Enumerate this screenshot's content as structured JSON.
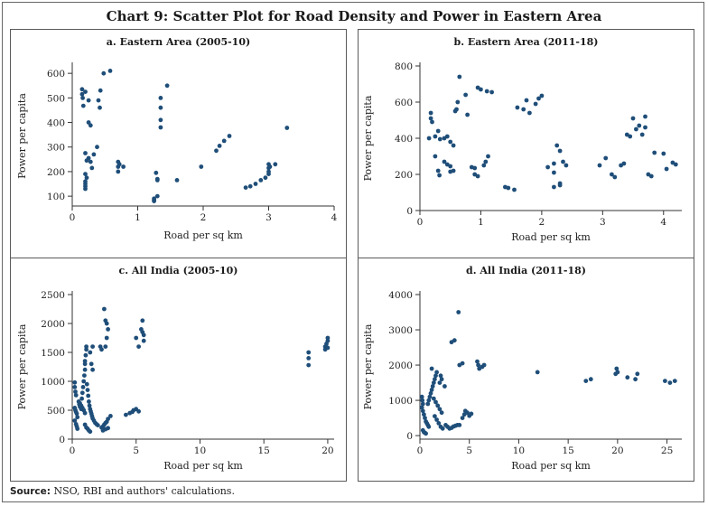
{
  "title": "Chart 9: Scatter Plot for Road Density and Power in Eastern Area",
  "source_label": "Source:",
  "source_text": "NSO, RBI and authors' calculations.",
  "colors": {
    "point": "#1f4e79",
    "axis": "#333333",
    "border": "#5a5a5a"
  },
  "chart_data": [
    {
      "type": "scatter",
      "title": "a. Eastern Area (2005-10)",
      "xlabel": "Road per sq km",
      "ylabel": "Power per capita",
      "xlim": [
        0,
        4
      ],
      "ylim": [
        60,
        630
      ],
      "xticks": [
        0,
        1,
        2,
        3,
        4
      ],
      "yticks": [
        100,
        200,
        300,
        400,
        500,
        600
      ],
      "points": [
        [
          0.15,
          535
        ],
        [
          0.15,
          515
        ],
        [
          0.16,
          500
        ],
        [
          0.17,
          468
        ],
        [
          0.2,
          525
        ],
        [
          0.25,
          490
        ],
        [
          0.25,
          400
        ],
        [
          0.28,
          388
        ],
        [
          0.4,
          490
        ],
        [
          0.42,
          460
        ],
        [
          0.43,
          530
        ],
        [
          0.48,
          600
        ],
        [
          0.58,
          610
        ],
        [
          0.2,
          275
        ],
        [
          0.25,
          255
        ],
        [
          0.28,
          240
        ],
        [
          0.3,
          215
        ],
        [
          0.33,
          270
        ],
        [
          0.38,
          300
        ],
        [
          0.2,
          190
        ],
        [
          0.22,
          175
        ],
        [
          0.2,
          160
        ],
        [
          0.2,
          150
        ],
        [
          0.2,
          140
        ],
        [
          0.2,
          130
        ],
        [
          0.22,
          245
        ],
        [
          0.7,
          240
        ],
        [
          0.72,
          230
        ],
        [
          0.7,
          220
        ],
        [
          0.7,
          200
        ],
        [
          0.78,
          220
        ],
        [
          1.3,
          100
        ],
        [
          1.25,
          90
        ],
        [
          1.25,
          85
        ],
        [
          1.25,
          80
        ],
        [
          1.28,
          195
        ],
        [
          1.3,
          170
        ],
        [
          1.3,
          165
        ],
        [
          1.35,
          460
        ],
        [
          1.35,
          500
        ],
        [
          1.35,
          410
        ],
        [
          1.35,
          380
        ],
        [
          1.45,
          550
        ],
        [
          1.6,
          165
        ],
        [
          1.97,
          220
        ],
        [
          2.2,
          285
        ],
        [
          2.25,
          305
        ],
        [
          2.32,
          325
        ],
        [
          2.4,
          345
        ],
        [
          2.65,
          135
        ],
        [
          2.72,
          140
        ],
        [
          2.8,
          150
        ],
        [
          2.88,
          165
        ],
        [
          2.95,
          175
        ],
        [
          3.0,
          230
        ],
        [
          3.0,
          215
        ],
        [
          3.0,
          200
        ],
        [
          3.02,
          220
        ],
        [
          3.0,
          190
        ],
        [
          3.1,
          230
        ],
        [
          3.28,
          378
        ]
      ]
    },
    {
      "type": "scatter",
      "title": "b. Eastern Area (2011-18)",
      "xlabel": "Road per sq km",
      "ylabel": "Power per capita",
      "xlim": [
        0,
        4.3
      ],
      "ylim": [
        0,
        800
      ],
      "xticks": [
        0,
        1,
        2,
        3,
        4
      ],
      "yticks": [
        0,
        200,
        400,
        600,
        800
      ],
      "points": [
        [
          0.18,
          540
        ],
        [
          0.18,
          510
        ],
        [
          0.2,
          490
        ],
        [
          0.15,
          400
        ],
        [
          0.25,
          410
        ],
        [
          0.3,
          440
        ],
        [
          0.33,
          395
        ],
        [
          0.4,
          400
        ],
        [
          0.45,
          410
        ],
        [
          0.5,
          380
        ],
        [
          0.55,
          360
        ],
        [
          0.25,
          300
        ],
        [
          0.3,
          220
        ],
        [
          0.32,
          195
        ],
        [
          0.4,
          270
        ],
        [
          0.45,
          255
        ],
        [
          0.5,
          245
        ],
        [
          0.5,
          215
        ],
        [
          0.55,
          220
        ],
        [
          0.58,
          550
        ],
        [
          0.6,
          560
        ],
        [
          0.62,
          600
        ],
        [
          0.65,
          740
        ],
        [
          0.75,
          640
        ],
        [
          0.78,
          530
        ],
        [
          0.85,
          240
        ],
        [
          0.9,
          235
        ],
        [
          0.9,
          200
        ],
        [
          0.95,
          190
        ],
        [
          0.95,
          680
        ],
        [
          1.0,
          670
        ],
        [
          1.05,
          250
        ],
        [
          1.1,
          660
        ],
        [
          1.12,
          300
        ],
        [
          1.18,
          655
        ],
        [
          1.08,
          270
        ],
        [
          1.4,
          130
        ],
        [
          1.45,
          125
        ],
        [
          1.55,
          115
        ],
        [
          1.6,
          570
        ],
        [
          1.7,
          560
        ],
        [
          1.75,
          610
        ],
        [
          1.8,
          540
        ],
        [
          1.9,
          590
        ],
        [
          1.95,
          620
        ],
        [
          2.0,
          635
        ],
        [
          2.1,
          240
        ],
        [
          2.2,
          260
        ],
        [
          2.25,
          360
        ],
        [
          2.3,
          330
        ],
        [
          2.2,
          130
        ],
        [
          2.3,
          140
        ],
        [
          2.35,
          270
        ],
        [
          2.4,
          250
        ],
        [
          2.2,
          210
        ],
        [
          2.3,
          150
        ],
        [
          2.95,
          250
        ],
        [
          3.05,
          290
        ],
        [
          3.15,
          200
        ],
        [
          3.2,
          185
        ],
        [
          3.3,
          250
        ],
        [
          3.35,
          260
        ],
        [
          3.4,
          420
        ],
        [
          3.45,
          410
        ],
        [
          3.5,
          510
        ],
        [
          3.55,
          450
        ],
        [
          3.6,
          470
        ],
        [
          3.65,
          420
        ],
        [
          3.7,
          520
        ],
        [
          3.7,
          460
        ],
        [
          3.75,
          200
        ],
        [
          3.8,
          190
        ],
        [
          3.85,
          320
        ],
        [
          4.0,
          315
        ],
        [
          4.05,
          230
        ],
        [
          4.15,
          265
        ],
        [
          4.2,
          255
        ]
      ]
    },
    {
      "type": "scatter",
      "title": "c. All India (2005-10)",
      "xlabel": "Road per sq km",
      "ylabel": "Power per capita",
      "xlim": [
        0,
        20.5
      ],
      "ylim": [
        0,
        2500
      ],
      "xticks": [
        0,
        5,
        10,
        15,
        20
      ],
      "yticks": [
        0,
        500,
        1000,
        1500,
        2000,
        2500
      ],
      "points": [
        [
          0.2,
          980
        ],
        [
          0.2,
          900
        ],
        [
          0.25,
          820
        ],
        [
          0.3,
          760
        ],
        [
          0.2,
          540
        ],
        [
          0.25,
          500
        ],
        [
          0.3,
          470
        ],
        [
          0.35,
          440
        ],
        [
          0.4,
          380
        ],
        [
          0.2,
          320
        ],
        [
          0.3,
          260
        ],
        [
          0.35,
          220
        ],
        [
          0.4,
          180
        ],
        [
          0.5,
          650
        ],
        [
          0.55,
          600
        ],
        [
          0.6,
          560
        ],
        [
          0.7,
          520
        ],
        [
          0.75,
          700
        ],
        [
          0.8,
          800
        ],
        [
          0.85,
          900
        ],
        [
          0.9,
          1000
        ],
        [
          0.95,
          1100
        ],
        [
          1.0,
          1200
        ],
        [
          1.0,
          1300
        ],
        [
          1.0,
          1350
        ],
        [
          1.05,
          1450
        ],
        [
          1.1,
          1550
        ],
        [
          1.1,
          1600
        ],
        [
          1.15,
          950
        ],
        [
          1.2,
          850
        ],
        [
          1.25,
          750
        ],
        [
          1.3,
          650
        ],
        [
          1.35,
          580
        ],
        [
          1.4,
          520
        ],
        [
          1.45,
          480
        ],
        [
          1.5,
          440
        ],
        [
          1.55,
          400
        ],
        [
          1.6,
          360
        ],
        [
          1.7,
          320
        ],
        [
          1.8,
          280
        ],
        [
          1.9,
          260
        ],
        [
          2.0,
          240
        ],
        [
          1.0,
          250
        ],
        [
          1.1,
          200
        ],
        [
          1.2,
          180
        ],
        [
          1.3,
          150
        ],
        [
          1.4,
          130
        ],
        [
          0.6,
          620
        ],
        [
          0.7,
          580
        ],
        [
          0.8,
          540
        ],
        [
          0.9,
          500
        ],
        [
          1.0,
          450
        ],
        [
          1.4,
          1500
        ],
        [
          1.6,
          1600
        ],
        [
          1.5,
          1300
        ],
        [
          1.6,
          1200
        ],
        [
          2.2,
          1600
        ],
        [
          2.3,
          1550
        ],
        [
          2.5,
          2250
        ],
        [
          2.6,
          2050
        ],
        [
          2.7,
          2000
        ],
        [
          2.8,
          1900
        ],
        [
          2.7,
          1750
        ],
        [
          2.6,
          1600
        ],
        [
          2.3,
          200
        ],
        [
          2.4,
          220
        ],
        [
          2.5,
          250
        ],
        [
          2.6,
          280
        ],
        [
          2.7,
          300
        ],
        [
          2.8,
          350
        ],
        [
          3.0,
          400
        ],
        [
          2.4,
          150
        ],
        [
          2.6,
          170
        ],
        [
          2.8,
          190
        ],
        [
          4.2,
          420
        ],
        [
          4.5,
          450
        ],
        [
          4.7,
          470
        ],
        [
          4.8,
          500
        ],
        [
          5.0,
          520
        ],
        [
          5.2,
          480
        ],
        [
          5.0,
          1750
        ],
        [
          5.2,
          1600
        ],
        [
          5.4,
          1900
        ],
        [
          5.5,
          1850
        ],
        [
          5.5,
          2050
        ],
        [
          5.6,
          1800
        ],
        [
          5.6,
          1700
        ],
        [
          18.5,
          1500
        ],
        [
          18.5,
          1400
        ],
        [
          18.5,
          1280
        ],
        [
          19.8,
          1600
        ],
        [
          19.8,
          1550
        ],
        [
          19.9,
          1650
        ],
        [
          20.0,
          1700
        ],
        [
          20.0,
          1750
        ],
        [
          20.0,
          1580
        ]
      ]
    },
    {
      "type": "scatter",
      "title": "d. All India (2011-18)",
      "xlabel": "Road per sq km",
      "ylabel": "Power per capita",
      "xlim": [
        0,
        26.5
      ],
      "ylim": [
        -100,
        4000
      ],
      "xticks": [
        0,
        5,
        10,
        15,
        20,
        25
      ],
      "yticks": [
        0,
        1000,
        2000,
        3000,
        4000
      ],
      "points": [
        [
          0.2,
          1100
        ],
        [
          0.25,
          1000
        ],
        [
          0.3,
          900
        ],
        [
          0.2,
          800
        ],
        [
          0.3,
          700
        ],
        [
          0.4,
          600
        ],
        [
          0.5,
          500
        ],
        [
          0.6,
          400
        ],
        [
          0.7,
          350
        ],
        [
          0.8,
          300
        ],
        [
          0.9,
          250
        ],
        [
          0.3,
          150
        ],
        [
          0.4,
          100
        ],
        [
          0.5,
          80
        ],
        [
          0.6,
          60
        ],
        [
          0.8,
          900
        ],
        [
          0.9,
          1000
        ],
        [
          1.0,
          1100
        ],
        [
          1.1,
          1200
        ],
        [
          1.2,
          1300
        ],
        [
          1.3,
          1400
        ],
        [
          1.4,
          1500
        ],
        [
          1.5,
          1600
        ],
        [
          1.6,
          1700
        ],
        [
          1.7,
          1800
        ],
        [
          1.2,
          1900
        ],
        [
          1.4,
          1050
        ],
        [
          1.6,
          950
        ],
        [
          1.8,
          850
        ],
        [
          2.0,
          750
        ],
        [
          2.2,
          650
        ],
        [
          1.5,
          550
        ],
        [
          1.7,
          450
        ],
        [
          1.9,
          350
        ],
        [
          2.1,
          250
        ],
        [
          2.3,
          200
        ],
        [
          2.0,
          1500
        ],
        [
          2.1,
          1700
        ],
        [
          2.2,
          1600
        ],
        [
          2.5,
          1400
        ],
        [
          2.6,
          300
        ],
        [
          2.8,
          250
        ],
        [
          3.0,
          200
        ],
        [
          3.2,
          220
        ],
        [
          3.4,
          260
        ],
        [
          3.6,
          280
        ],
        [
          3.8,
          300
        ],
        [
          3.2,
          2650
        ],
        [
          3.5,
          2700
        ],
        [
          3.9,
          3500
        ],
        [
          4.0,
          2000
        ],
        [
          4.3,
          2050
        ],
        [
          4.0,
          300
        ],
        [
          4.3,
          500
        ],
        [
          4.5,
          600
        ],
        [
          4.6,
          700
        ],
        [
          4.8,
          650
        ],
        [
          5.0,
          560
        ],
        [
          5.2,
          620
        ],
        [
          5.8,
          2100
        ],
        [
          5.9,
          2000
        ],
        [
          6.0,
          1900
        ],
        [
          6.3,
          1950
        ],
        [
          6.5,
          2000
        ],
        [
          11.9,
          1800
        ],
        [
          16.8,
          1550
        ],
        [
          17.3,
          1600
        ],
        [
          19.8,
          1750
        ],
        [
          19.9,
          1900
        ],
        [
          20.0,
          1800
        ],
        [
          21.0,
          1650
        ],
        [
          21.8,
          1600
        ],
        [
          22.0,
          1750
        ],
        [
          24.8,
          1550
        ],
        [
          25.3,
          1500
        ],
        [
          25.8,
          1550
        ]
      ]
    }
  ]
}
